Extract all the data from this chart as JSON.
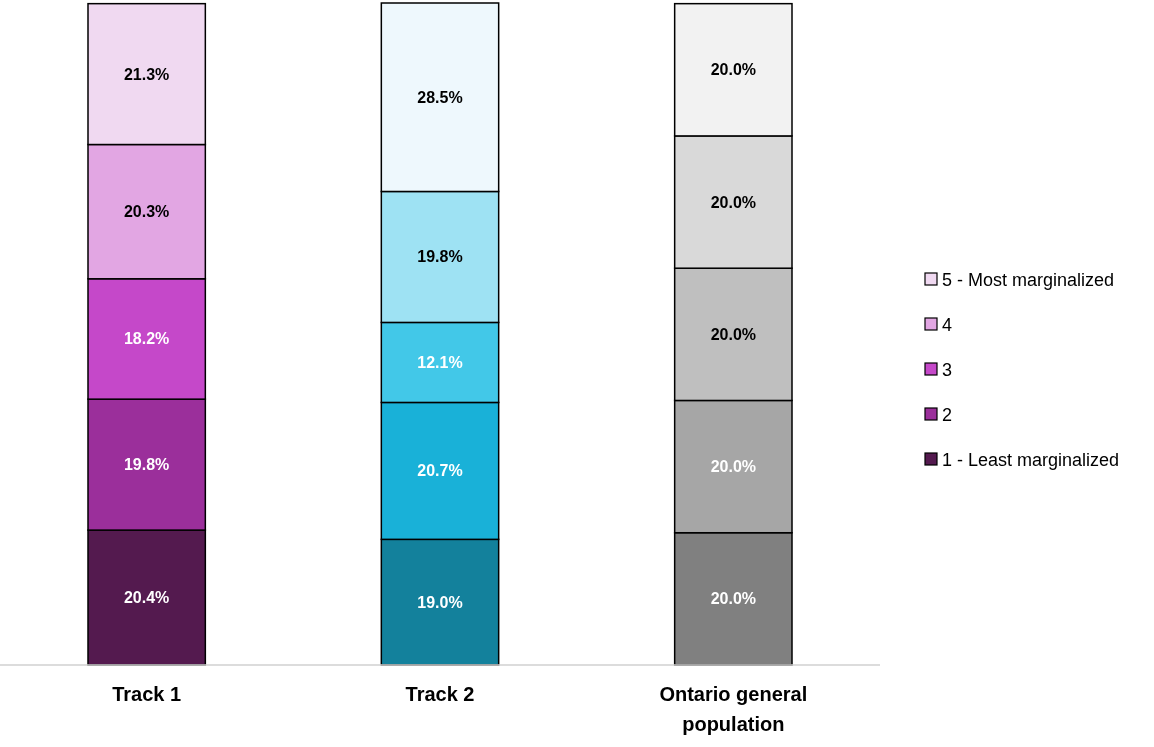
{
  "chart_data": {
    "type": "bar",
    "stacked": true,
    "categories": [
      "Track 1",
      "Track 2",
      "Ontario general population"
    ],
    "series": [
      {
        "name": "1 - Least marginalized",
        "color": "#541a4f",
        "colors": [
          "#541a4f",
          "#13819c",
          "#808080"
        ],
        "values": [
          20.4,
          19.0,
          20.0
        ],
        "value_labels": [
          "20.4%",
          "19.0%",
          "20.0%"
        ]
      },
      {
        "name": "2",
        "color": "#9b2f9b",
        "colors": [
          "#9b2f9b",
          "#19b1d8",
          "#a6a6a6"
        ],
        "values": [
          19.8,
          20.7,
          20.0
        ],
        "value_labels": [
          "19.8%",
          "20.7%",
          "20.0%"
        ]
      },
      {
        "name": "3",
        "color": "#c548c9",
        "colors": [
          "#c548c9",
          "#42c8e8",
          "#bfbfbf"
        ],
        "values": [
          18.2,
          12.1,
          20.0
        ],
        "value_labels": [
          "18.2%",
          "12.1%",
          "20.0%"
        ]
      },
      {
        "name": "4",
        "color": "#e2a6e3",
        "colors": [
          "#e2a6e3",
          "#9ee2f3",
          "#d9d9d9"
        ],
        "values": [
          20.3,
          19.8,
          20.0
        ],
        "value_labels": [
          "20.3%",
          "19.8%",
          "20.0%"
        ]
      },
      {
        "name": "5 - Most marginalized",
        "color": "#f0d9f1",
        "colors": [
          "#f0d9f1",
          "#eef8fd",
          "#f2f2f2"
        ],
        "values": [
          21.3,
          28.5,
          20.0
        ],
        "value_labels": [
          "21.3%",
          "28.5%",
          "20.0%"
        ]
      }
    ],
    "legend": "right",
    "tick_labels": "x"
  }
}
